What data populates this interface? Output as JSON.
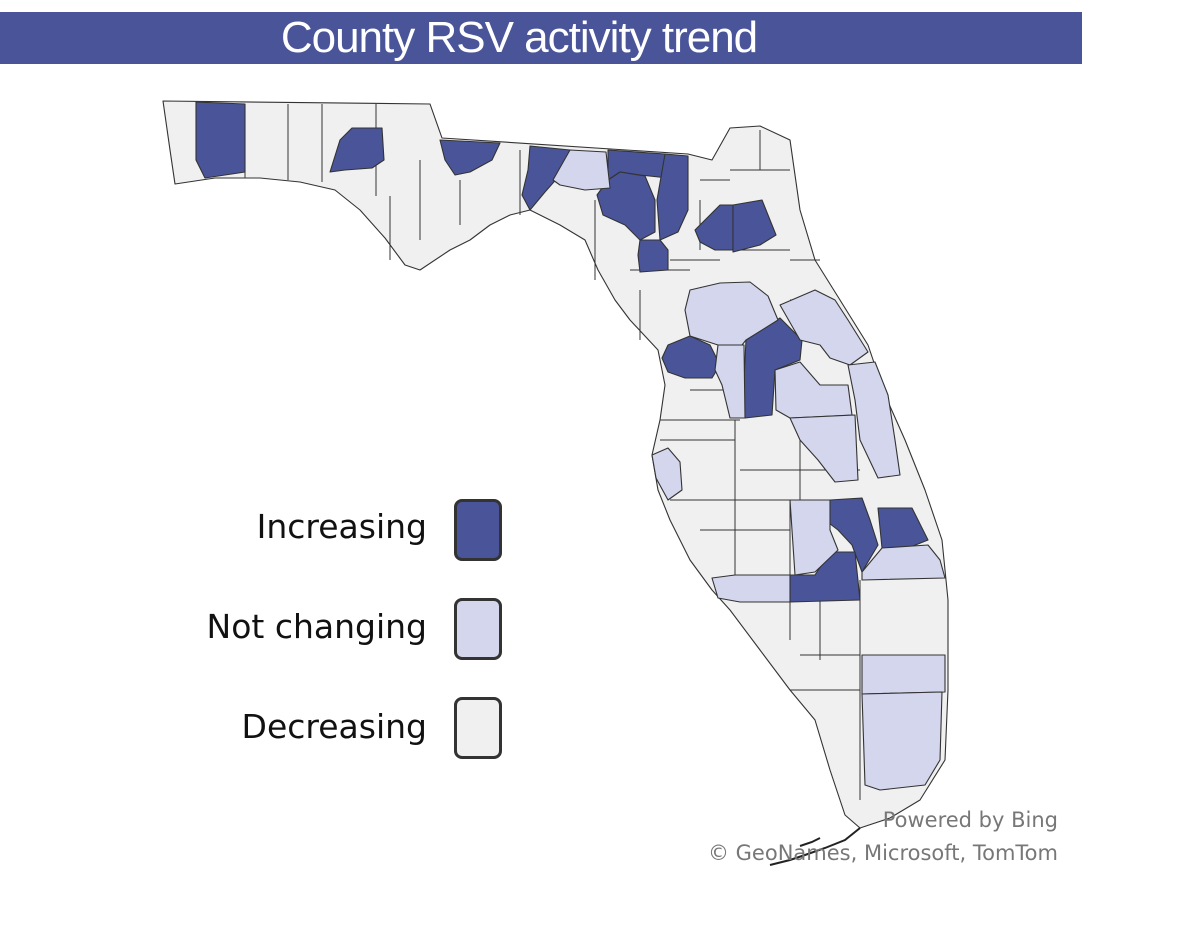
{
  "title": "County RSV activity trend",
  "colors": {
    "title_bar": "#4a5599",
    "increasing": "#4a5599",
    "not_changing": "#d3d6ec",
    "decreasing": "#f0f0f0",
    "border": "#333333"
  },
  "legend": [
    {
      "label": "Increasing",
      "category": "increasing"
    },
    {
      "label": "Not changing",
      "category": "not_changing"
    },
    {
      "label": "Decreasing",
      "category": "decreasing"
    }
  ],
  "attribution": {
    "powered_by": "Powered by Bing",
    "copyright": "© GeoNames, Microsoft, TomTom"
  },
  "regions": [
    {
      "id": "escambia",
      "trend": "increasing"
    },
    {
      "id": "okaloosa-west",
      "trend": "decreasing"
    },
    {
      "id": "walton",
      "trend": "decreasing"
    },
    {
      "id": "holmes",
      "trend": "decreasing"
    },
    {
      "id": "washington",
      "trend": "increasing"
    },
    {
      "id": "jackson",
      "trend": "decreasing"
    },
    {
      "id": "gadsden",
      "trend": "decreasing"
    },
    {
      "id": "leon",
      "trend": "increasing"
    },
    {
      "id": "jefferson",
      "trend": "decreasing"
    },
    {
      "id": "madison",
      "trend": "increasing"
    },
    {
      "id": "hamilton",
      "trend": "not_changing"
    },
    {
      "id": "columbia-north",
      "trend": "increasing"
    },
    {
      "id": "baker",
      "trend": "increasing"
    },
    {
      "id": "union-bradford",
      "trend": "increasing"
    },
    {
      "id": "suwannee-gilchrist",
      "trend": "increasing"
    },
    {
      "id": "alachua-north",
      "trend": "increasing"
    },
    {
      "id": "clay",
      "trend": "increasing"
    },
    {
      "id": "putnam",
      "trend": "increasing"
    },
    {
      "id": "marion",
      "trend": "not_changing"
    },
    {
      "id": "volusia",
      "trend": "not_changing"
    },
    {
      "id": "citrus",
      "trend": "increasing"
    },
    {
      "id": "sumter",
      "trend": "not_changing"
    },
    {
      "id": "lake",
      "trend": "increasing"
    },
    {
      "id": "seminole-orange",
      "trend": "not_changing"
    },
    {
      "id": "brevard",
      "trend": "not_changing"
    },
    {
      "id": "osceola",
      "trend": "not_changing"
    },
    {
      "id": "pinellas",
      "trend": "not_changing"
    },
    {
      "id": "highlands",
      "trend": "not_changing"
    },
    {
      "id": "okeechobee",
      "trend": "increasing"
    },
    {
      "id": "st-lucie",
      "trend": "increasing"
    },
    {
      "id": "martin",
      "trend": "not_changing"
    },
    {
      "id": "glades",
      "trend": "increasing"
    },
    {
      "id": "charlotte",
      "trend": "not_changing"
    },
    {
      "id": "broward",
      "trend": "not_changing"
    },
    {
      "id": "miami-dade",
      "trend": "not_changing"
    }
  ]
}
